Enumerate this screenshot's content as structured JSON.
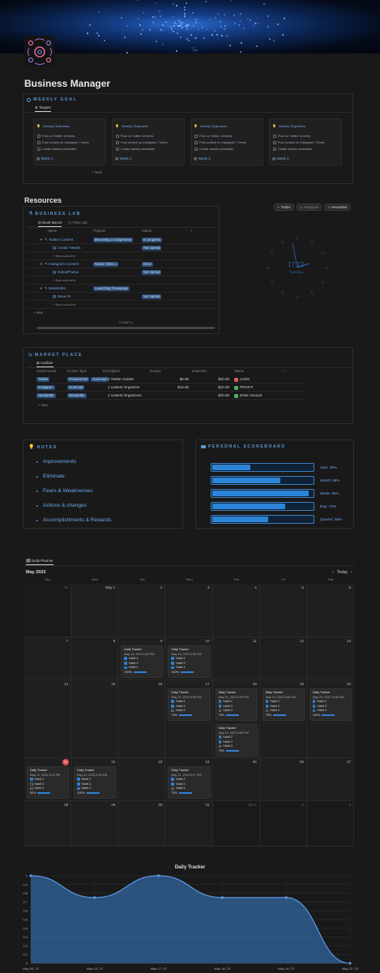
{
  "page": {
    "title": "Business Manager"
  },
  "weekly_goal": {
    "heading": "WEEKLY GOAL",
    "tab": "Targets",
    "new_label": "+ New",
    "cards": [
      {
        "title": "Weekly Objectives",
        "tasks": [
          "Post on Twitter 14 times",
          "Post content on Instagram 7 times",
          "Create weekly newsletter"
        ],
        "week": "Week 1"
      },
      {
        "title": "Weekly Objectives",
        "tasks": [
          "Post on Twitter 14 times",
          "Post content on Instagram 7 times",
          "Create weekly newsletter"
        ],
        "week": "Week 2"
      },
      {
        "title": "Weekly Objectives",
        "tasks": [
          "Post on Twitter 14 times",
          "Post content on Instagram 7 times",
          "Create weekly newsletter"
        ],
        "week": "Week 3"
      },
      {
        "title": "Weekly Objectives",
        "tasks": [
          "Post on Twitter 14 times",
          "Post content on Instagram 7 times",
          "Create weekly newsletter"
        ],
        "week": "Week 4"
      }
    ]
  },
  "resources": {
    "heading": "Resources",
    "lab_heading": "BUSINESS LAB",
    "tabs": [
      "Work Bench",
      "Time Lab"
    ],
    "columns": [
      "Name",
      "Projects",
      "Status"
    ],
    "groups": [
      {
        "name": "Twitter Content",
        "project": "Becoming a solopreneur",
        "status": "In progress",
        "sub": "Create Tweets",
        "sub_status": "Not started"
      },
      {
        "name": "Instagram Content",
        "project": "Notion Video 1",
        "status": "Done",
        "sub": "Video/Photos",
        "sub_status": "Not started"
      },
      {
        "name": "Newsletter",
        "project": "Launching Giveaways",
        "status": "",
        "sub": "Issue #1",
        "sub_status": "Not started"
      }
    ],
    "new_sub": "+ New sub-item",
    "new_label": "+ New",
    "count": "COUNT 6",
    "links": [
      "Twitter",
      "Instagram",
      "Newsletter"
    ],
    "clock": {
      "time": "17:12",
      "day": "Tuesday"
    }
  },
  "marketplace": {
    "heading": "MARKET PLACE",
    "tab": "Cashier",
    "columns": [
      "Social media",
      "Income Type",
      "Description",
      "Income",
      "Expenses",
      "Status"
    ],
    "rows": [
      {
        "media": "Twitter",
        "type": [
          "ProductHunt",
          "Gumroad"
        ],
        "desc": "2 Twitter Guides",
        "income": "$5.00",
        "expenses": "$20.00",
        "status": "LOSS",
        "status_icon": "!",
        "status_color": "#d9534f"
      },
      {
        "media": "Instagram",
        "type": [
          "Gumroad"
        ],
        "desc": "1 content Organizer",
        "income": "$15.00",
        "expenses": "$10.00",
        "status": "PROFIT",
        "status_icon": "✓",
        "status_color": "#3aa55d"
      },
      {
        "media": "Newsletter",
        "type": [
          "Newsletter"
        ],
        "desc": "2 content Organizers",
        "income": "",
        "expenses": "$20.00",
        "status": "Enter Amount",
        "status_icon": "✓",
        "status_color": "#3aa55d"
      }
    ],
    "new_label": "+ New"
  },
  "notes": {
    "heading": "NOTES",
    "items": [
      "Improvements",
      "Eliminate",
      "Fears & Weaknesses",
      "Actions & changes",
      "Accomplishments & Rewards"
    ]
  },
  "scoreboard": {
    "heading": "PERSONAL SCOREBOARD",
    "bars": [
      {
        "label": "Year: 39%",
        "value": 0.39
      },
      {
        "label": "Month: 68%",
        "value": 0.68
      },
      {
        "label": "Week: 96%",
        "value": 0.96
      },
      {
        "label": "Day: 73%",
        "value": 0.73
      },
      {
        "label": "Quarter: 56%",
        "value": 0.56
      }
    ]
  },
  "planner": {
    "tab": "Daily Planner",
    "month": "May 2023",
    "today": "Today",
    "weekdays": [
      "Sun",
      "Mon",
      "Tue",
      "Wed",
      "Thu",
      "Fri",
      "Sat"
    ],
    "weeks": [
      [
        "30",
        "May 1",
        "2",
        "3",
        "4",
        "5",
        "6"
      ],
      [
        "7",
        "8",
        "9",
        "10",
        "11",
        "12",
        "13"
      ],
      [
        "14",
        "15",
        "16",
        "17",
        "18",
        "19",
        "20"
      ],
      [
        "21",
        "22",
        "23",
        "24",
        "25",
        "26",
        "27"
      ],
      [
        "28",
        "29",
        "30",
        "31",
        "Jun 1",
        "2",
        "3"
      ]
    ],
    "trackers": [
      {
        "week": 1,
        "day": 2,
        "date": "May 19, 2023 6:06 PM",
        "checks": [
          true,
          true,
          true
        ],
        "pct": "100%"
      },
      {
        "week": 1,
        "day": 3,
        "date": "May 19, 2023 5:59 PM",
        "checks": [
          true,
          true,
          true
        ],
        "pct": "100%"
      },
      {
        "week": 2,
        "day": 3,
        "date": "May 19, 2023 6:08 PM",
        "checks": [
          true,
          true,
          false
        ],
        "pct": "75%"
      },
      {
        "week": 2,
        "day": 4,
        "date": "May 21, 2023 5:29 PM",
        "checks": [
          true,
          true,
          false
        ],
        "pct": "75%"
      },
      {
        "week": 2,
        "day": 5,
        "date": "May 19, 2023 5:56 PM",
        "checks": [
          true,
          true,
          false
        ],
        "pct": "75%"
      },
      {
        "week": 2,
        "day": 6,
        "date": "May 20, 2023 11:05 AM",
        "checks": [
          true,
          true,
          true
        ],
        "pct": "100%"
      },
      {
        "week": 2,
        "day": 4,
        "slot": 1,
        "date": "May 19, 2023 5:58 PM",
        "checks": [
          true,
          true,
          false
        ],
        "pct": "75%"
      },
      {
        "week": 3,
        "day": 0,
        "date": "May 21, 2023 5:26 PM",
        "checks": [
          true,
          false,
          false
        ],
        "pct": "50%"
      },
      {
        "week": 3,
        "day": 1,
        "date": "May 21, 2023 5:26 PM",
        "checks": [
          true,
          true,
          true
        ],
        "pct": "100%"
      },
      {
        "week": 3,
        "day": 3,
        "date": "May 21, 2023 5:27 PM",
        "checks": [
          true,
          true,
          false
        ],
        "pct": "75%"
      }
    ],
    "tracker_title": "Daily Tracker",
    "habits": [
      "Habit 2",
      "Habit 3",
      "Habit 4"
    ],
    "today_badge": "21"
  },
  "chart_data": {
    "type": "area",
    "title": "Daily Tracker",
    "x": [
      "May 09, 23",
      "May 10, 23",
      "May 17, 23",
      "May 18, 23",
      "May 19, 23",
      "May 22, 23"
    ],
    "values": [
      1.0,
      0.75,
      1.0,
      0.75,
      0.75,
      0.0
    ],
    "yticks": [
      "1",
      "0.9",
      "0.8",
      "0.7",
      "0.6",
      "0.5",
      "0.4",
      "0.3",
      "0.2",
      "0.1",
      "0"
    ],
    "ylim": [
      0,
      1
    ],
    "color": "#3a7fd0",
    "grid": true
  }
}
